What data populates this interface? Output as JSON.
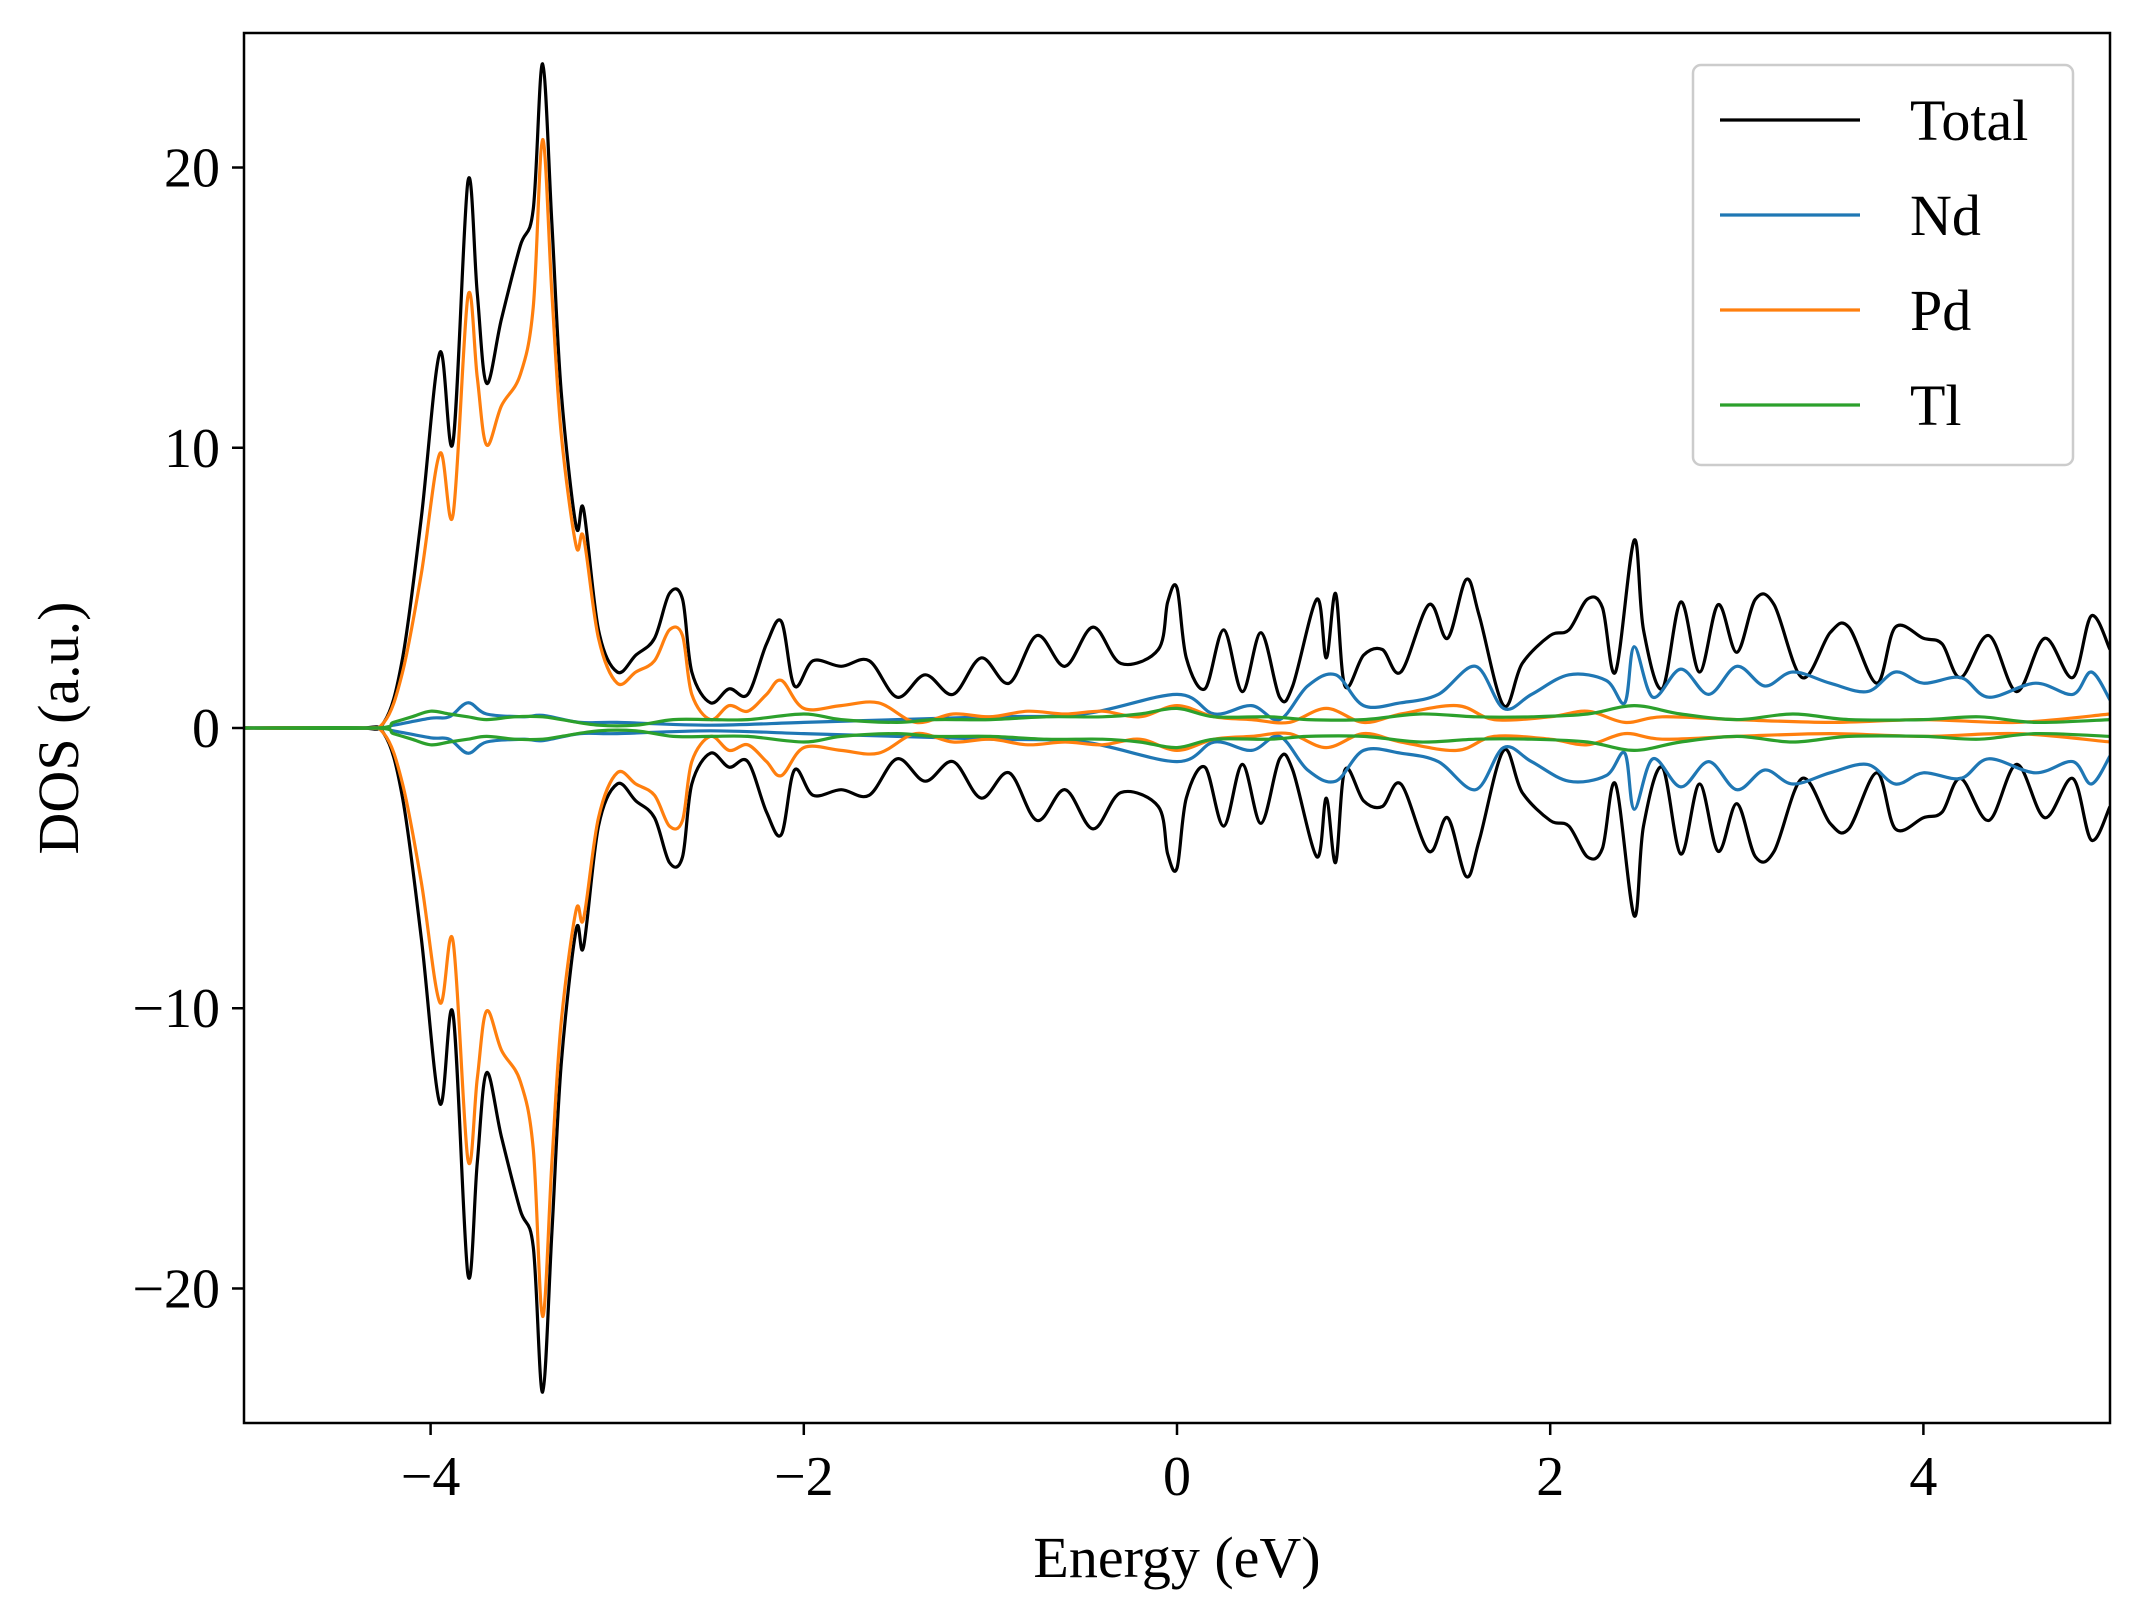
{
  "chart_data": {
    "type": "line",
    "title": "",
    "xlabel": "Energy (eV)",
    "ylabel": "DOS (a.u.)",
    "xlim": [
      -5,
      5
    ],
    "ylim": [
      -24.8,
      24.8
    ],
    "xticks": [
      -4,
      -2,
      0,
      2,
      4
    ],
    "xtick_labels": [
      "−4",
      "−2",
      "0",
      "2",
      "4"
    ],
    "yticks": [
      -20,
      -10,
      0,
      10,
      20
    ],
    "ytick_labels": [
      "−20",
      "−10",
      "0",
      "10",
      "20"
    ],
    "grid": false,
    "legend": {
      "position": "top-right",
      "entries": [
        "Total",
        "Nd",
        "Pd",
        "Tl"
      ]
    },
    "spin_mirrored": true,
    "series": [
      {
        "name": "Total",
        "color": "#000000",
        "points": [
          [
            -5.0,
            0
          ],
          [
            -4.4,
            0
          ],
          [
            -4.25,
            0.2
          ],
          [
            -4.15,
            2.5
          ],
          [
            -4.05,
            7.5
          ],
          [
            -3.95,
            13.4
          ],
          [
            -3.88,
            10.2
          ],
          [
            -3.8,
            19.5
          ],
          [
            -3.75,
            15.5
          ],
          [
            -3.7,
            12.3
          ],
          [
            -3.62,
            14.6
          ],
          [
            -3.52,
            17.2
          ],
          [
            -3.45,
            18.5
          ],
          [
            -3.4,
            23.7
          ],
          [
            -3.35,
            18.0
          ],
          [
            -3.3,
            12.0
          ],
          [
            -3.22,
            7.2
          ],
          [
            -3.18,
            7.8
          ],
          [
            -3.1,
            3.5
          ],
          [
            -3.0,
            2.0
          ],
          [
            -2.9,
            2.6
          ],
          [
            -2.8,
            3.2
          ],
          [
            -2.72,
            4.8
          ],
          [
            -2.65,
            4.6
          ],
          [
            -2.6,
            2.0
          ],
          [
            -2.5,
            0.9
          ],
          [
            -2.4,
            1.4
          ],
          [
            -2.3,
            1.2
          ],
          [
            -2.2,
            3.0
          ],
          [
            -2.12,
            3.8
          ],
          [
            -2.05,
            1.5
          ],
          [
            -1.95,
            2.4
          ],
          [
            -1.8,
            2.2
          ],
          [
            -1.65,
            2.4
          ],
          [
            -1.5,
            1.1
          ],
          [
            -1.35,
            1.9
          ],
          [
            -1.2,
            1.2
          ],
          [
            -1.05,
            2.5
          ],
          [
            -0.9,
            1.6
          ],
          [
            -0.75,
            3.3
          ],
          [
            -0.6,
            2.2
          ],
          [
            -0.45,
            3.6
          ],
          [
            -0.3,
            2.3
          ],
          [
            -0.1,
            2.8
          ],
          [
            -0.05,
            4.5
          ],
          [
            0.0,
            5.0
          ],
          [
            0.05,
            2.5
          ],
          [
            0.15,
            1.4
          ],
          [
            0.25,
            3.5
          ],
          [
            0.35,
            1.3
          ],
          [
            0.45,
            3.4
          ],
          [
            0.55,
            1.1
          ],
          [
            0.62,
            1.5
          ],
          [
            0.75,
            4.6
          ],
          [
            0.8,
            2.5
          ],
          [
            0.85,
            4.8
          ],
          [
            0.9,
            1.5
          ],
          [
            1.0,
            2.6
          ],
          [
            1.1,
            2.8
          ],
          [
            1.2,
            2.0
          ],
          [
            1.35,
            4.4
          ],
          [
            1.45,
            3.2
          ],
          [
            1.55,
            5.3
          ],
          [
            1.62,
            4.0
          ],
          [
            1.75,
            0.8
          ],
          [
            1.85,
            2.3
          ],
          [
            2.0,
            3.3
          ],
          [
            2.1,
            3.5
          ],
          [
            2.2,
            4.6
          ],
          [
            2.28,
            4.3
          ],
          [
            2.35,
            2.0
          ],
          [
            2.45,
            6.7
          ],
          [
            2.5,
            3.5
          ],
          [
            2.6,
            1.4
          ],
          [
            2.7,
            4.5
          ],
          [
            2.8,
            2.0
          ],
          [
            2.9,
            4.4
          ],
          [
            3.0,
            2.7
          ],
          [
            3.1,
            4.6
          ],
          [
            3.2,
            4.4
          ],
          [
            3.35,
            1.8
          ],
          [
            3.5,
            3.4
          ],
          [
            3.6,
            3.6
          ],
          [
            3.75,
            1.6
          ],
          [
            3.85,
            3.6
          ],
          [
            4.0,
            3.2
          ],
          [
            4.1,
            3.0
          ],
          [
            4.2,
            1.8
          ],
          [
            4.35,
            3.3
          ],
          [
            4.5,
            1.3
          ],
          [
            4.65,
            3.2
          ],
          [
            4.8,
            1.8
          ],
          [
            4.9,
            4.0
          ],
          [
            5.0,
            2.8
          ]
        ]
      },
      {
        "name": "Nd",
        "color": "#1f77b4",
        "points": [
          [
            -5.0,
            0
          ],
          [
            -4.3,
            0
          ],
          [
            -4.2,
            0.1
          ],
          [
            -4.0,
            0.35
          ],
          [
            -3.9,
            0.4
          ],
          [
            -3.8,
            0.9
          ],
          [
            -3.7,
            0.5
          ],
          [
            -3.5,
            0.4
          ],
          [
            -3.4,
            0.45
          ],
          [
            -3.2,
            0.2
          ],
          [
            -3.0,
            0.2
          ],
          [
            -2.5,
            0.1
          ],
          [
            -2.0,
            0.2
          ],
          [
            -1.5,
            0.3
          ],
          [
            -1.0,
            0.4
          ],
          [
            -0.5,
            0.5
          ],
          [
            0.0,
            1.2
          ],
          [
            0.2,
            0.5
          ],
          [
            0.4,
            0.8
          ],
          [
            0.55,
            0.3
          ],
          [
            0.7,
            1.5
          ],
          [
            0.85,
            1.9
          ],
          [
            1.0,
            0.8
          ],
          [
            1.2,
            0.9
          ],
          [
            1.4,
            1.2
          ],
          [
            1.6,
            2.2
          ],
          [
            1.75,
            0.7
          ],
          [
            1.9,
            1.2
          ],
          [
            2.1,
            1.9
          ],
          [
            2.3,
            1.7
          ],
          [
            2.4,
            0.9
          ],
          [
            2.45,
            2.9
          ],
          [
            2.55,
            1.1
          ],
          [
            2.7,
            2.1
          ],
          [
            2.85,
            1.2
          ],
          [
            3.0,
            2.2
          ],
          [
            3.15,
            1.5
          ],
          [
            3.3,
            2.0
          ],
          [
            3.5,
            1.6
          ],
          [
            3.7,
            1.3
          ],
          [
            3.85,
            2.0
          ],
          [
            4.0,
            1.6
          ],
          [
            4.2,
            1.8
          ],
          [
            4.35,
            1.1
          ],
          [
            4.6,
            1.6
          ],
          [
            4.8,
            1.2
          ],
          [
            4.9,
            2.0
          ],
          [
            5.0,
            1.0
          ]
        ]
      },
      {
        "name": "Pd",
        "color": "#ff7f0e",
        "points": [
          [
            -5.0,
            0
          ],
          [
            -4.4,
            0
          ],
          [
            -4.25,
            0.2
          ],
          [
            -4.15,
            2.0
          ],
          [
            -4.05,
            5.5
          ],
          [
            -3.95,
            9.8
          ],
          [
            -3.88,
            7.6
          ],
          [
            -3.8,
            15.4
          ],
          [
            -3.75,
            12.5
          ],
          [
            -3.7,
            10.1
          ],
          [
            -3.62,
            11.5
          ],
          [
            -3.52,
            12.6
          ],
          [
            -3.45,
            15.0
          ],
          [
            -3.4,
            21.0
          ],
          [
            -3.35,
            15.5
          ],
          [
            -3.3,
            10.5
          ],
          [
            -3.22,
            6.5
          ],
          [
            -3.18,
            6.8
          ],
          [
            -3.1,
            3.2
          ],
          [
            -3.0,
            1.6
          ],
          [
            -2.9,
            2.0
          ],
          [
            -2.8,
            2.4
          ],
          [
            -2.72,
            3.5
          ],
          [
            -2.65,
            3.3
          ],
          [
            -2.6,
            1.2
          ],
          [
            -2.5,
            0.3
          ],
          [
            -2.4,
            0.8
          ],
          [
            -2.3,
            0.6
          ],
          [
            -2.2,
            1.2
          ],
          [
            -2.12,
            1.7
          ],
          [
            -2.0,
            0.7
          ],
          [
            -1.8,
            0.8
          ],
          [
            -1.6,
            0.9
          ],
          [
            -1.4,
            0.2
          ],
          [
            -1.2,
            0.5
          ],
          [
            -1.0,
            0.4
          ],
          [
            -0.8,
            0.6
          ],
          [
            -0.6,
            0.5
          ],
          [
            -0.4,
            0.6
          ],
          [
            -0.2,
            0.4
          ],
          [
            0.0,
            0.8
          ],
          [
            0.2,
            0.4
          ],
          [
            0.4,
            0.3
          ],
          [
            0.6,
            0.2
          ],
          [
            0.8,
            0.7
          ],
          [
            1.0,
            0.2
          ],
          [
            1.2,
            0.5
          ],
          [
            1.5,
            0.8
          ],
          [
            1.7,
            0.3
          ],
          [
            2.0,
            0.4
          ],
          [
            2.2,
            0.6
          ],
          [
            2.4,
            0.2
          ],
          [
            2.6,
            0.4
          ],
          [
            3.0,
            0.3
          ],
          [
            3.5,
            0.2
          ],
          [
            4.0,
            0.3
          ],
          [
            4.5,
            0.2
          ],
          [
            5.0,
            0.5
          ]
        ]
      },
      {
        "name": "Tl",
        "color": "#2ca02c",
        "points": [
          [
            -5.0,
            0
          ],
          [
            -4.3,
            0
          ],
          [
            -4.2,
            0.2
          ],
          [
            -4.1,
            0.4
          ],
          [
            -4.0,
            0.6
          ],
          [
            -3.9,
            0.5
          ],
          [
            -3.8,
            0.4
          ],
          [
            -3.7,
            0.3
          ],
          [
            -3.55,
            0.4
          ],
          [
            -3.4,
            0.4
          ],
          [
            -3.3,
            0.3
          ],
          [
            -3.1,
            0.1
          ],
          [
            -2.9,
            0.1
          ],
          [
            -2.7,
            0.3
          ],
          [
            -2.5,
            0.3
          ],
          [
            -2.3,
            0.3
          ],
          [
            -2.0,
            0.5
          ],
          [
            -1.8,
            0.3
          ],
          [
            -1.5,
            0.2
          ],
          [
            -1.3,
            0.3
          ],
          [
            -1.0,
            0.3
          ],
          [
            -0.7,
            0.4
          ],
          [
            -0.4,
            0.4
          ],
          [
            -0.2,
            0.5
          ],
          [
            0.0,
            0.7
          ],
          [
            0.2,
            0.4
          ],
          [
            0.5,
            0.4
          ],
          [
            0.7,
            0.3
          ],
          [
            1.0,
            0.3
          ],
          [
            1.3,
            0.5
          ],
          [
            1.6,
            0.4
          ],
          [
            1.9,
            0.4
          ],
          [
            2.2,
            0.5
          ],
          [
            2.45,
            0.8
          ],
          [
            2.7,
            0.5
          ],
          [
            3.0,
            0.3
          ],
          [
            3.3,
            0.5
          ],
          [
            3.6,
            0.3
          ],
          [
            4.0,
            0.3
          ],
          [
            4.3,
            0.4
          ],
          [
            4.6,
            0.2
          ],
          [
            5.0,
            0.3
          ]
        ]
      }
    ]
  }
}
